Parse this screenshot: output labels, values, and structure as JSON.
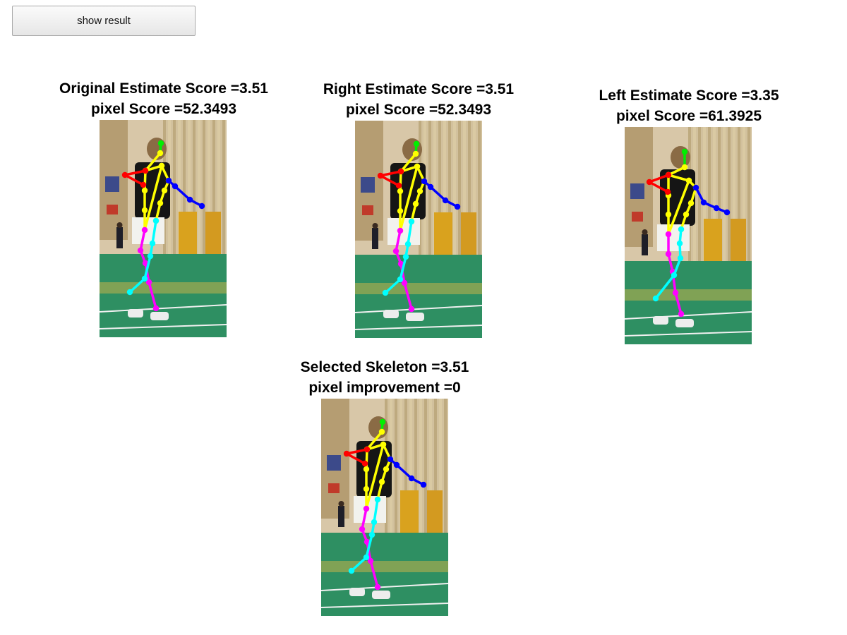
{
  "toolbar": {
    "show_result_label": "show result"
  },
  "panels": [
    {
      "id": "original",
      "title": "Original Estimate Score =3.51",
      "subtitle": "pixel Score =52.3493",
      "variant": "right"
    },
    {
      "id": "right",
      "title": "Right Estimate Score =3.51",
      "subtitle": "pixel Score =52.3493",
      "variant": "right"
    },
    {
      "id": "left",
      "title": "Left Estimate Score =3.35",
      "subtitle": "pixel Score =61.3925",
      "variant": "left"
    },
    {
      "id": "selected",
      "title": "Selected Skeleton =3.51",
      "subtitle": "pixel improvement =0",
      "variant": "right"
    }
  ],
  "colors": {
    "head": "#00ee00",
    "torso": "#ffff00",
    "right_arm": "#ff0000",
    "left_arm": "#0000ff",
    "leg_a": "#ff00ff",
    "leg_b": "#00ffff",
    "floor": "#2e8f62",
    "curtain": "#c9b68a",
    "wall": "#d8c7a8"
  }
}
